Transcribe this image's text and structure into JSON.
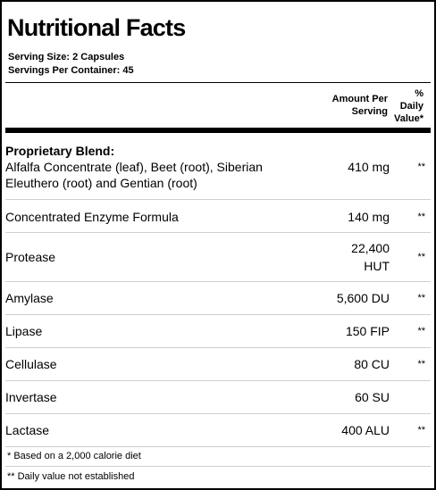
{
  "title": "Nutritional Facts",
  "serving_size": "Serving Size:  2 Capsules",
  "servings_per_container": "Servings Per Container:  45",
  "header": {
    "amount_line1": "Amount Per",
    "amount_line2": "Serving",
    "dv_line1": "%",
    "dv_line2": "Daily",
    "dv_line3": "Value*"
  },
  "blend": {
    "title": "Proprietary Blend:",
    "line1": "Alfalfa Concentrate (leaf), Beet (root), Siberian",
    "line2": "Eleuthero (root) and Gentian (root)",
    "amount": "410 mg",
    "dv": "**"
  },
  "rows": [
    {
      "name": "Concentrated Enzyme Formula",
      "amount": "140 mg",
      "dv": "**"
    },
    {
      "name": "Protease",
      "amount_line1": "22,400",
      "amount_line2": "HUT",
      "dv": "**"
    },
    {
      "name": "Amylase",
      "amount": "5,600 DU",
      "dv": "**"
    },
    {
      "name": "Lipase",
      "amount": "150 FIP",
      "dv": "**"
    },
    {
      "name": "Cellulase",
      "amount": "80 CU",
      "dv": "**"
    },
    {
      "name": "Invertase",
      "amount": "60 SU",
      "dv": ""
    },
    {
      "name": "Lactase",
      "amount": "400 ALU",
      "dv": "**"
    }
  ],
  "footnotes": [
    "* Based on a 2,000 calorie diet",
    "** Daily value not established"
  ]
}
